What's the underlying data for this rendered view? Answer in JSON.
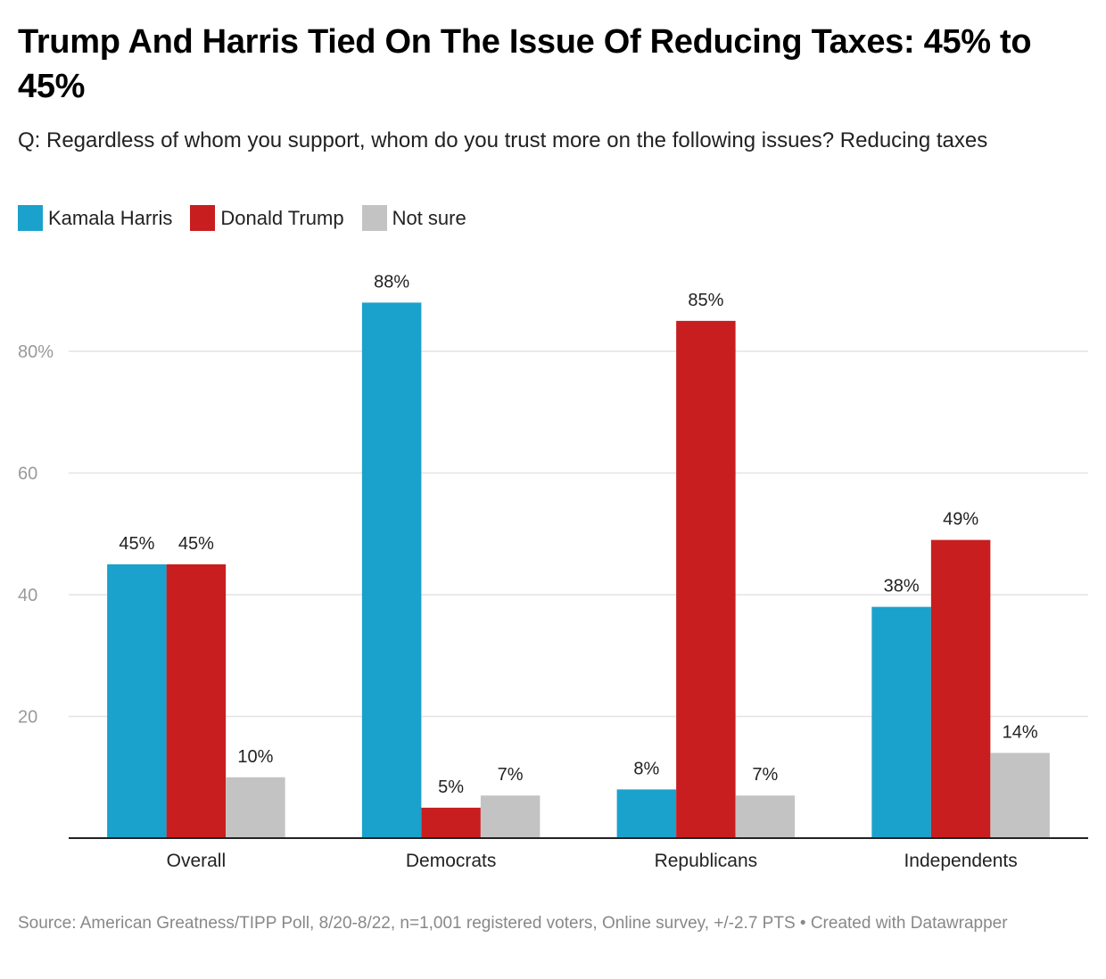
{
  "title": "Trump And Harris Tied On The Issue Of Reducing Taxes: 45% to 45%",
  "subtitle": "Q: Regardless of whom you support, whom do you trust more on the following issues? Reducing taxes",
  "footer": "Source: American Greatness/TIPP Poll, 8/20-8/22, n=1,001 registered voters, Online survey, +/-2.7 PTS • Created with Datawrapper",
  "chart_data": {
    "type": "bar",
    "title": "Trump And Harris Tied On The Issue Of Reducing Taxes: 45% to 45%",
    "subtitle": "Q: Regardless of whom you support, whom do you trust more on the following issues? Reducing taxes",
    "xlabel": "",
    "ylabel": "",
    "categories": [
      "Overall",
      "Democrats",
      "Republicans",
      "Independents"
    ],
    "series": [
      {
        "name": "Kamala Harris",
        "color": "#1aa1cc",
        "values": [
          45,
          88,
          8,
          38
        ]
      },
      {
        "name": "Donald Trump",
        "color": "#c81e1f",
        "values": [
          45,
          5,
          85,
          49
        ]
      },
      {
        "name": "Not sure",
        "color": "#c3c3c3",
        "values": [
          10,
          7,
          7,
          14
        ]
      }
    ],
    "value_suffix": "%",
    "yticks": [
      20,
      40,
      60,
      80
    ],
    "ytick_labels": [
      "20",
      "40",
      "60",
      "80%"
    ],
    "ylim": [
      0,
      80
    ],
    "grid": true,
    "legend_position": "top-left"
  }
}
